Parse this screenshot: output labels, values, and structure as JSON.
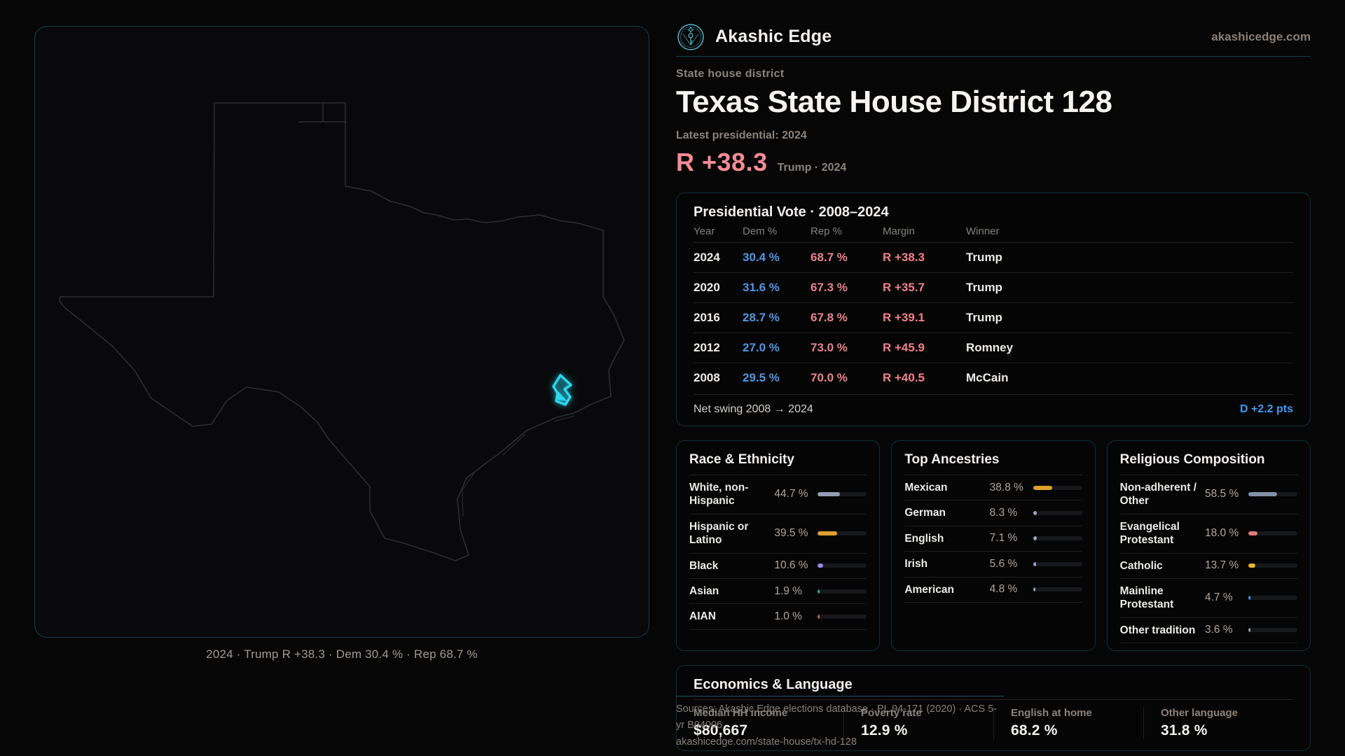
{
  "brand": {
    "name": "Akashic Edge",
    "domain": "akashicedge.com"
  },
  "page": {
    "kicker": "State house district",
    "title": "Texas State House District 128",
    "latest_label": "Latest presidential: 2024",
    "headline_margin": "R +38.3",
    "headline_context": "Trump · 2024"
  },
  "map": {
    "caption": "2024 · Trump R +38.3 · Dem 30.4 % · Rep 68.7 %"
  },
  "presidential": {
    "title": "Presidential Vote · 2008–2024",
    "columns": [
      "Year",
      "Dem %",
      "Rep %",
      "Margin",
      "Winner"
    ],
    "rows": [
      {
        "year": "2024",
        "dem": "30.4 %",
        "rep": "68.7 %",
        "margin": "R +38.3",
        "winner": "Trump"
      },
      {
        "year": "2020",
        "dem": "31.6 %",
        "rep": "67.3 %",
        "margin": "R +35.7",
        "winner": "Trump"
      },
      {
        "year": "2016",
        "dem": "28.7 %",
        "rep": "67.8 %",
        "margin": "R +39.1",
        "winner": "Trump"
      },
      {
        "year": "2012",
        "dem": "27.0 %",
        "rep": "73.0 %",
        "margin": "R +45.9",
        "winner": "Romney"
      },
      {
        "year": "2008",
        "dem": "29.5 %",
        "rep": "70.0 %",
        "margin": "R +40.5",
        "winner": "McCain"
      }
    ],
    "net_swing_label": "Net swing 2008 → 2024",
    "net_swing_value": "D +2.2 pts"
  },
  "demographics": [
    {
      "title": "Race & Ethnicity",
      "rows": [
        {
          "label": "White, non-Hispanic",
          "value": "44.7 %",
          "pct": 44.7,
          "color": "#939eb4"
        },
        {
          "label": "Hispanic or Latino",
          "value": "39.5 %",
          "pct": 39.5,
          "color": "#dfa02f"
        },
        {
          "label": "Black",
          "value": "10.6 %",
          "pct": 10.6,
          "color": "#9f87f0"
        },
        {
          "label": "Asian",
          "value": "1.9 %",
          "pct": 1.9,
          "color": "#2ab388"
        },
        {
          "label": "AIAN",
          "value": "1.0 %",
          "pct": 1.0,
          "color": "#bf6f2c"
        }
      ]
    },
    {
      "title": "Top Ancestries",
      "rows": [
        {
          "label": "Mexican",
          "value": "38.8 %",
          "pct": 38.8,
          "color": "#dfa02f"
        },
        {
          "label": "German",
          "value": "8.3 %",
          "pct": 8.3,
          "color": "#8fa6c9"
        },
        {
          "label": "English",
          "value": "7.1 %",
          "pct": 7.1,
          "color": "#8fa6c9"
        },
        {
          "label": "Irish",
          "value": "5.6 %",
          "pct": 5.6,
          "color": "#8fa6c9"
        },
        {
          "label": "American",
          "value": "4.8 %",
          "pct": 4.8,
          "color": "#8fa6c9"
        }
      ]
    },
    {
      "title": "Religious Composition",
      "rows": [
        {
          "label": "Non-adherent / Other",
          "value": "58.5 %",
          "pct": 58.5,
          "color": "#8391a6"
        },
        {
          "label": "Evangelical Protestant",
          "value": "18.0 %",
          "pct": 18.0,
          "color": "#e27979"
        },
        {
          "label": "Catholic",
          "value": "13.7 %",
          "pct": 13.7,
          "color": "#e8b52f"
        },
        {
          "label": "Mainline Protestant",
          "value": "4.7 %",
          "pct": 4.7,
          "color": "#4e90ea"
        },
        {
          "label": "Other tradition",
          "value": "3.6 %",
          "pct": 3.6,
          "color": "#9aa0a8"
        }
      ]
    }
  ],
  "economics": {
    "title": "Economics & Language",
    "stats": [
      {
        "label": "Median HH income",
        "value": "$80,667"
      },
      {
        "label": "Poverty rate",
        "value": "12.9 %"
      },
      {
        "label": "English at home",
        "value": "68.2 %"
      },
      {
        "label": "Other language",
        "value": "31.8 %"
      }
    ]
  },
  "footer": {
    "line1": "Sources: Akashic Edge elections database · PL 94-171 (2020) · ACS 5-yr B04006",
    "line2": "akashicedge.com/state-house/tx-hd-128"
  },
  "colors": {
    "accent_teal": "#37c0d4",
    "district_cyan": "#29d8f0",
    "dem_blue": "#4f97e3",
    "rep_red": "#ea8289",
    "margin_red": "#f0828a",
    "headline_red": "#f58b93",
    "swing_blue": "#3f9bf5"
  }
}
